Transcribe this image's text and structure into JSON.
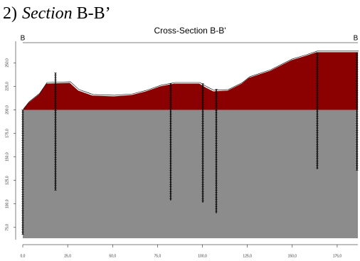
{
  "header": {
    "number": "2)",
    "italic": "Section",
    "rest": "B-B’"
  },
  "chart_data": {
    "type": "profile",
    "title": "Cross-Section B-B'",
    "left_label": "B",
    "right_label": "B",
    "xlim": [
      0,
      186.5
    ],
    "ylim": [
      62,
      273
    ],
    "xticks": [
      {
        "value": 0,
        "label": "0,0"
      },
      {
        "value": 25,
        "label": "25,0"
      },
      {
        "value": 50,
        "label": "50,0"
      },
      {
        "value": 75,
        "label": "75,0"
      },
      {
        "value": 100,
        "label": "100,0"
      },
      {
        "value": 125,
        "label": "125,0"
      },
      {
        "value": 150,
        "label": "150,0"
      },
      {
        "value": 175,
        "label": "175,0"
      }
    ],
    "yticks": [
      {
        "value": 75,
        "label": "75,0"
      },
      {
        "value": 100,
        "label": "100,0"
      },
      {
        "value": 125,
        "label": "125,0"
      },
      {
        "value": 150,
        "label": "150,0"
      },
      {
        "value": 175,
        "label": "175,0"
      },
      {
        "value": 200,
        "label": "200,0"
      },
      {
        "value": 225,
        "label": "225,0"
      },
      {
        "value": 250,
        "label": "250,0"
      }
    ],
    "surface": {
      "color": "#8b0000",
      "x": [
        0,
        3.2,
        9.1,
        13.1,
        26.1,
        30.9,
        38.8,
        50.7,
        60.6,
        68.5,
        76.4,
        84.3,
        98.2,
        102.1,
        106.1,
        114,
        121.9,
        125.9,
        137.8,
        149.6,
        157.6,
        163.5,
        186.5
      ],
      "y": [
        200,
        207.6,
        216.7,
        228,
        228.8,
        220.5,
        215.2,
        214.4,
        215.9,
        219.7,
        225,
        228,
        228,
        223.5,
        219.7,
        220.5,
        228,
        234.1,
        241.7,
        253,
        257.6,
        261.4,
        261.4
      ]
    },
    "base": {
      "top": 200,
      "color": "#8c8c8c"
    },
    "boreholes": {
      "x": [
        0,
        18.2,
        82.3,
        100.2,
        107.7,
        163.9,
        186
      ],
      "top": [
        200,
        239.4,
        228,
        228,
        222,
        260.6,
        260.6
      ],
      "bottom": [
        67.4,
        114.4,
        103.8,
        101.5,
        90.2,
        137.1,
        135.6
      ]
    }
  }
}
